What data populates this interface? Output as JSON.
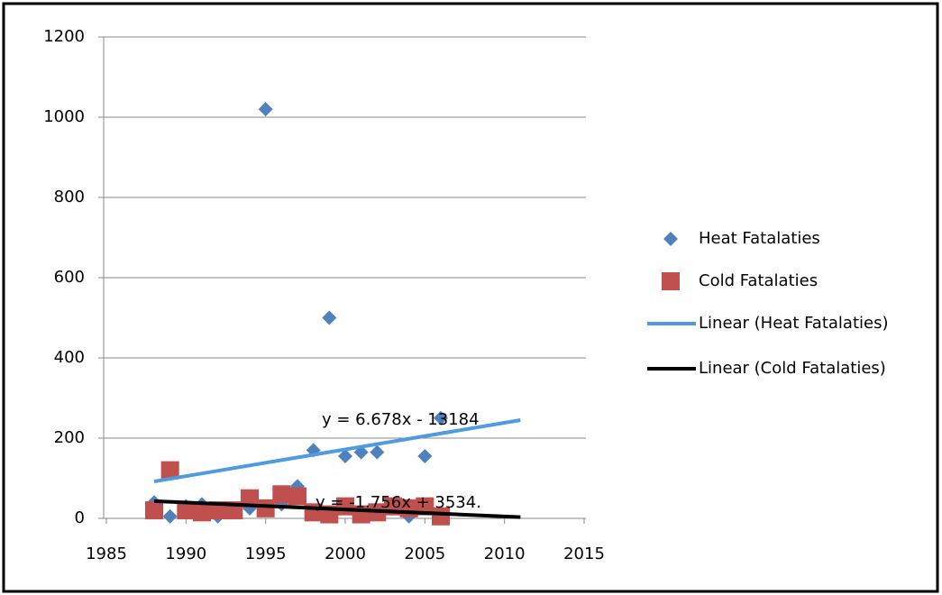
{
  "chart_data": {
    "type": "scatter",
    "x": [
      1988,
      1989,
      1990,
      1991,
      1992,
      1993,
      1994,
      1995,
      1996,
      1997,
      1998,
      1999,
      2000,
      2001,
      2002,
      2003,
      2004,
      2005,
      2006
    ],
    "series": [
      {
        "name": "Heat Fatalaties",
        "color": "#4f81bd",
        "marker": "diamond",
        "values": [
          40,
          5,
          30,
          35,
          5,
          20,
          25,
          1020,
          35,
          80,
          170,
          500,
          155,
          165,
          165,
          35,
          5,
          155,
          250
        ]
      },
      {
        "name": "Cold Fatalaties",
        "color": "#c0504d",
        "marker": "square",
        "values": [
          20,
          120,
          20,
          15,
          20,
          20,
          50,
          25,
          60,
          55,
          15,
          10,
          30,
          10,
          15,
          30,
          25,
          30,
          5
        ]
      }
    ],
    "trendlines": [
      {
        "name": "Linear (Heat Fatalaties)",
        "color": "#4f9ae0",
        "x": [
          1988,
          2011
        ],
        "values": [
          92,
          245
        ],
        "equation": "y = 6.678x - 13184"
      },
      {
        "name": "Linear (Cold Fatalaties)",
        "color": "#000000",
        "x": [
          1988,
          2011
        ],
        "values": [
          43,
          3
        ],
        "equation": "y = -1.756x + 3534."
      }
    ],
    "xlim": [
      1985,
      2015
    ],
    "xticks": [
      1985,
      1990,
      1995,
      2000,
      2005,
      2010,
      2015
    ],
    "ylim": [
      0,
      1200
    ],
    "yticks": [
      0,
      200,
      400,
      600,
      800,
      1000,
      1200
    ],
    "grid": true,
    "legend": "right"
  }
}
